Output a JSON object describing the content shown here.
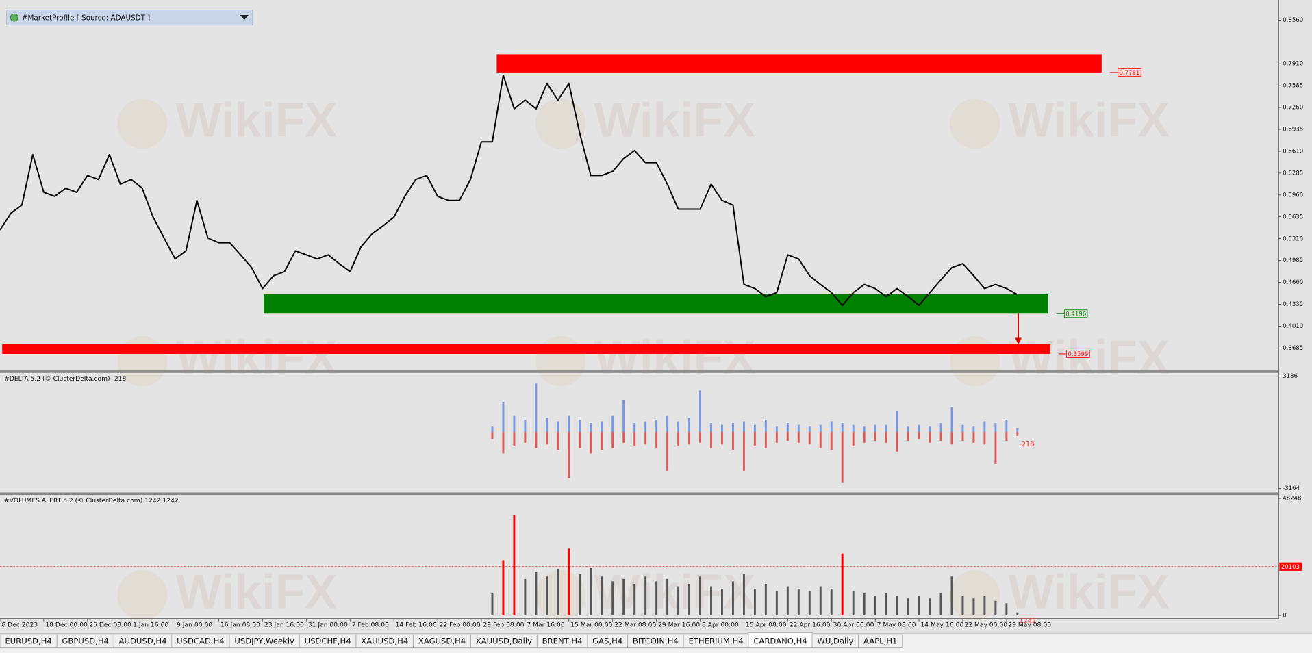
{
  "indicator_box": "#MarketProfile [ Source: ADAUSDT ]",
  "watermark": "WikiFX",
  "tabs": [
    "EURUSD,H4",
    "GBPUSD,H4",
    "AUDUSD,H4",
    "USDCAD,H4",
    "USDJPY,Weekly",
    "USDCHF,H4",
    "XAUUSD,H4",
    "XAGUSD,H4",
    "XAUUSD,Daily",
    "BRENT,H4",
    "GAS,H4",
    "BITCOIN,H4",
    "ETHERIUM,H4",
    "CARDANO,H4",
    "WU,Daily",
    "AAPL,H1"
  ],
  "active_tab": 13,
  "chart_data": [
    {
      "type": "line",
      "categories": [
        "8 Dec 2023",
        null,
        null,
        null,
        "18 Dec 00:00",
        null,
        null,
        null,
        "25 Dec 08:00",
        null,
        null,
        null,
        "1 Jan 16:00",
        null,
        null,
        null,
        "9 Jan 00:00",
        null,
        null,
        null,
        "16 Jan 08:00",
        null,
        null,
        null,
        "23 Jan 16:00",
        null,
        null,
        null,
        "31 Jan 00:00",
        null,
        null,
        null,
        "7 Feb 08:00",
        null,
        null,
        null,
        "14 Feb 16:00",
        null,
        null,
        null,
        "22 Feb 00:00",
        null,
        null,
        null,
        "29 Feb 08:00",
        null,
        null,
        null,
        "7 Mar 16:00",
        null,
        null,
        null,
        "15 Mar 00:00",
        null,
        null,
        null,
        "22 Mar 08:00",
        null,
        null,
        null,
        "29 Mar 16:00",
        null,
        null,
        null,
        "8 Apr 00:00",
        null,
        null,
        null,
        "15 Apr 08:00",
        null,
        null,
        null,
        "22 Apr 16:00",
        null,
        null,
        null,
        "30 Apr 00:00",
        null,
        null,
        null,
        "7 May 08:00",
        null,
        null,
        null,
        "14 May 16:00",
        null,
        null,
        null,
        "22 May 00:00",
        null,
        null,
        null,
        "29 May 08:00",
        null
      ],
      "values": [
        0.544,
        0.569,
        0.581,
        0.656,
        0.6,
        0.594,
        0.606,
        0.6,
        0.625,
        0.619,
        0.656,
        0.612,
        0.619,
        0.606,
        0.563,
        0.532,
        0.501,
        0.513,
        0.588,
        0.532,
        0.525,
        0.525,
        0.507,
        0.488,
        0.457,
        0.476,
        0.482,
        0.513,
        0.507,
        0.501,
        0.507,
        0.494,
        0.482,
        0.519,
        0.538,
        0.55,
        0.563,
        0.594,
        0.619,
        0.625,
        0.594,
        0.588,
        0.588,
        0.619,
        0.675,
        0.675,
        0.774,
        0.724,
        0.737,
        0.724,
        0.762,
        0.737,
        0.762,
        0.687,
        0.625,
        0.625,
        0.631,
        0.65,
        0.662,
        0.644,
        0.644,
        0.612,
        0.575,
        0.575,
        0.575,
        0.612,
        0.588,
        0.581,
        0.463,
        0.457,
        0.445,
        0.451,
        0.507,
        0.501,
        0.476,
        0.463,
        0.451,
        0.432,
        0.451,
        0.463,
        0.457,
        0.445,
        0.457,
        0.445,
        0.432,
        0.451,
        0.47,
        0.488,
        0.494,
        0.476,
        0.457,
        0.463,
        0.457,
        0.448
      ],
      "color": "#000000",
      "ylim": [
        0.3353,
        0.8858
      ],
      "yticks": [
        {
          "value": 0.856,
          "label": "0.8560"
        },
        {
          "value": 0.791,
          "label": "0.7910"
        },
        0.7585,
        {
          "value": 0.726,
          "label": "0.7260"
        },
        0.6935,
        {
          "value": 0.661,
          "label": "0.6610"
        },
        0.6285,
        {
          "value": 0.596,
          "label": "0.5960"
        },
        0.5635,
        {
          "value": 0.531,
          "label": "0.5310"
        },
        0.4985,
        {
          "value": 0.466,
          "label": "0.4660"
        },
        0.4335,
        {
          "value": 0.401,
          "label": "0.4010"
        },
        0.3685
      ],
      "zones": [
        {
          "color": "#ff0000",
          "x0": 45.4,
          "x1": 100.7,
          "top": 0.805,
          "bottom": 0.7781
        },
        {
          "color": "#008000",
          "x0": 24.1,
          "x1": 95.8,
          "top": 0.4484,
          "bottom": 0.4196
        },
        {
          "color": "#ff0000",
          "x0": 0.2,
          "x1": 96.0,
          "top": 0.375,
          "bottom": 0.3599
        }
      ]
    },
    {
      "type": "bar",
      "title": "#DELTA 5.2 (© ClusterDelta.com) -218",
      "series": [
        {
          "color": "#7b96e0",
          "values": [
            null,
            null,
            null,
            null,
            null,
            null,
            null,
            null,
            null,
            null,
            null,
            null,
            null,
            null,
            null,
            null,
            null,
            null,
            null,
            null,
            null,
            null,
            null,
            null,
            null,
            null,
            null,
            null,
            null,
            null,
            null,
            null,
            null,
            null,
            null,
            null,
            null,
            null,
            null,
            null,
            null,
            null,
            null,
            null,
            null,
            300,
            1700,
            900,
            700,
            2730,
            800,
            600,
            900,
            700,
            500,
            600,
            900,
            1800,
            500,
            600,
            700,
            900,
            600,
            800,
            2340,
            500,
            400,
            500,
            600,
            400,
            700,
            300,
            500,
            400,
            300,
            400,
            600,
            500,
            400,
            300,
            400,
            400,
            1200,
            300,
            400,
            300,
            500,
            1400,
            400,
            300,
            600,
            500,
            700,
            200
          ]
        },
        {
          "color": "#e05a5a",
          "values": [
            null,
            null,
            null,
            null,
            null,
            null,
            null,
            null,
            null,
            null,
            null,
            null,
            null,
            null,
            null,
            null,
            null,
            null,
            null,
            null,
            null,
            null,
            null,
            null,
            null,
            null,
            null,
            null,
            null,
            null,
            null,
            null,
            null,
            null,
            null,
            null,
            null,
            null,
            null,
            null,
            null,
            null,
            null,
            null,
            null,
            -400,
            -1200,
            -800,
            -600,
            -900,
            -700,
            -1000,
            -2600,
            -900,
            -1200,
            -1000,
            -900,
            -600,
            -800,
            -700,
            -900,
            -2180,
            -800,
            -700,
            -600,
            -900,
            -700,
            -1000,
            -2180,
            -800,
            -900,
            -600,
            -500,
            -600,
            -700,
            -900,
            -1000,
            -2830,
            -800,
            -600,
            -500,
            -600,
            -1100,
            -500,
            -400,
            -600,
            -500,
            -700,
            -500,
            -600,
            -700,
            -1800,
            -500,
            -218
          ]
        }
      ],
      "ylim": [
        -3399,
        3324
      ],
      "yticks": [
        3136,
        -3164
      ]
    },
    {
      "type": "bar",
      "title": "#VOLUMES ALERT 5.2 (© ClusterDelta.com) 1242 1242",
      "values": [
        null,
        null,
        null,
        null,
        null,
        null,
        null,
        null,
        null,
        null,
        null,
        null,
        null,
        null,
        null,
        null,
        null,
        null,
        null,
        null,
        null,
        null,
        null,
        null,
        null,
        null,
        null,
        null,
        null,
        null,
        null,
        null,
        null,
        null,
        null,
        null,
        null,
        null,
        null,
        null,
        null,
        null,
        null,
        null,
        null,
        9000,
        22740,
        41350,
        15000,
        18000,
        16000,
        19000,
        27570,
        17000,
        19500,
        16000,
        14000,
        15000,
        13000,
        16000,
        14000,
        15000,
        12000,
        13000,
        16000,
        12000,
        11000,
        14000,
        17000,
        11000,
        13000,
        10000,
        12000,
        11000,
        10000,
        12000,
        11000,
        25500,
        10000,
        9000,
        8000,
        9000,
        8000,
        7000,
        8000,
        7000,
        9000,
        16000,
        8000,
        7000,
        8000,
        6000,
        5000,
        1242
      ],
      "color": "#555555",
      "alert": {
        "value": 20103,
        "color": "#ff0000"
      },
      "ylim": [
        -1378,
        49626
      ],
      "yticks": [
        48248,
        0
      ]
    }
  ]
}
